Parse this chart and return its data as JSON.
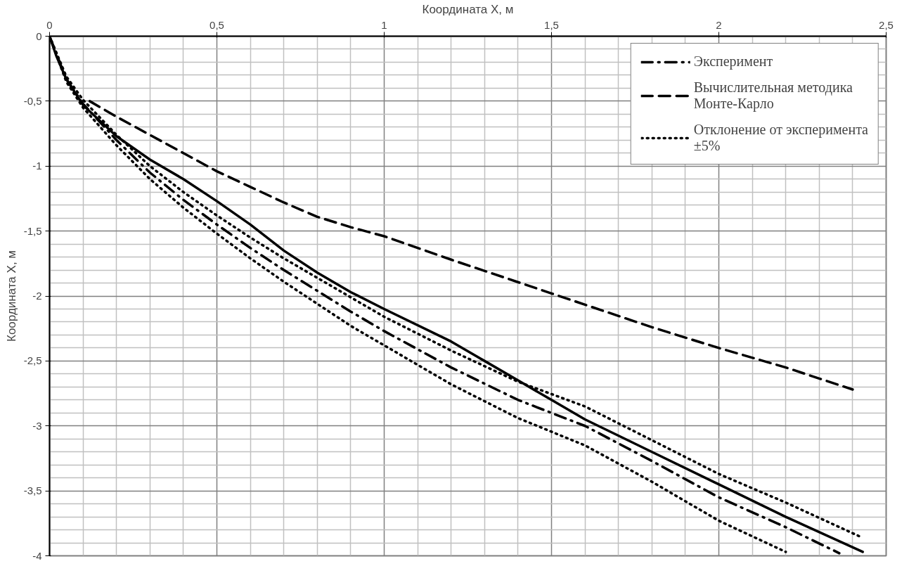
{
  "chart_data": {
    "type": "line",
    "xlabel": "Координата X, м",
    "ylabel": "Координата X, м",
    "xlim": [
      0,
      2.5
    ],
    "ylim": [
      -4,
      0
    ],
    "xticks": [
      0,
      {
        "value": 0.5,
        "label": "0,5"
      },
      1,
      {
        "value": 1.5,
        "label": "1,5"
      },
      2,
      {
        "value": 2.5,
        "label": "2,5"
      }
    ],
    "yticks": [
      {
        "value": -4,
        "label": "-4"
      },
      {
        "value": -3.5,
        "label": "-3,5"
      },
      {
        "value": -3,
        "label": "-3"
      },
      {
        "value": -2.5,
        "label": "-2,5"
      },
      {
        "value": -2,
        "label": "-2"
      },
      {
        "value": -1.5,
        "label": "-1,5"
      },
      {
        "value": -1,
        "label": "-1"
      },
      {
        "value": -0.5,
        "label": "-0,5"
      },
      0
    ],
    "grid": true,
    "legend": "top right",
    "series": [
      {
        "color": "#000000",
        "line_style": "solid",
        "x": [
          0,
          0.02,
          0.05,
          0.1,
          0.2,
          0.3,
          0.4,
          0.5,
          0.6,
          0.7,
          0.8,
          0.9,
          1.0,
          1.2,
          1.3,
          1.4,
          1.5,
          1.6,
          1.8,
          2.0,
          2.2,
          2.43
        ],
        "values": [
          0,
          -0.15,
          -0.33,
          -0.53,
          -0.77,
          -0.95,
          -1.1,
          -1.27,
          -1.45,
          -1.65,
          -1.82,
          -1.97,
          -2.1,
          -2.35,
          -2.5,
          -2.65,
          -2.8,
          -2.95,
          -3.2,
          -3.45,
          -3.7,
          -3.97
        ]
      },
      {
        "name": "Эксперимент",
        "color": "#000000",
        "line_style": "dashdot",
        "x": [
          0,
          0.05,
          0.1,
          0.2,
          0.3,
          0.4,
          0.5,
          0.6,
          0.7,
          0.8,
          0.9,
          1.0,
          1.2,
          1.4,
          1.5,
          1.6,
          1.8,
          2.0,
          2.2,
          2.36
        ],
        "values": [
          0,
          -0.33,
          -0.52,
          -0.8,
          -1.05,
          -1.26,
          -1.45,
          -1.63,
          -1.8,
          -1.96,
          -2.12,
          -2.27,
          -2.55,
          -2.8,
          -2.9,
          -3.0,
          -3.27,
          -3.55,
          -3.78,
          -3.98
        ]
      },
      {
        "name": "Вычислительная методика\nМонте-Карло",
        "color": "#000000",
        "line_style": "dashed",
        "x": [
          0.12,
          0.2,
          0.3,
          0.4,
          0.5,
          0.6,
          0.7,
          0.8,
          0.9,
          1.0,
          1.2,
          1.5,
          1.8,
          2.0,
          2.2,
          2.4
        ],
        "values": [
          -0.5,
          -0.62,
          -0.76,
          -0.9,
          -1.04,
          -1.16,
          -1.28,
          -1.39,
          -1.47,
          -1.54,
          -1.72,
          -1.98,
          -2.24,
          -2.4,
          -2.55,
          -2.72
        ]
      },
      {
        "name": "Отклонение от эксперимента\n±5%",
        "color": "#000000",
        "line_style": "dotted",
        "x": [
          0,
          0.05,
          0.1,
          0.2,
          0.3,
          0.4,
          0.5,
          0.6,
          0.7,
          0.8,
          0.9,
          1.0,
          1.2,
          1.4,
          1.6,
          1.8,
          2.0,
          2.2,
          2.42
        ],
        "values": [
          0,
          -0.31,
          -0.49,
          -0.76,
          -1.0,
          -1.2,
          -1.38,
          -1.55,
          -1.71,
          -1.86,
          -2.01,
          -2.16,
          -2.42,
          -2.66,
          -2.85,
          -3.11,
          -3.37,
          -3.59,
          -3.85
        ]
      },
      {
        "color": "#000000",
        "line_style": "dotted",
        "x": [
          0,
          0.05,
          0.1,
          0.2,
          0.3,
          0.4,
          0.5,
          0.6,
          0.7,
          0.8,
          0.9,
          1.0,
          1.2,
          1.4,
          1.6,
          1.8,
          2.0,
          2.2
        ],
        "values": [
          0,
          -0.35,
          -0.55,
          -0.84,
          -1.1,
          -1.32,
          -1.52,
          -1.71,
          -1.89,
          -2.06,
          -2.23,
          -2.38,
          -2.68,
          -2.94,
          -3.15,
          -3.43,
          -3.73,
          -3.97
        ]
      }
    ]
  }
}
